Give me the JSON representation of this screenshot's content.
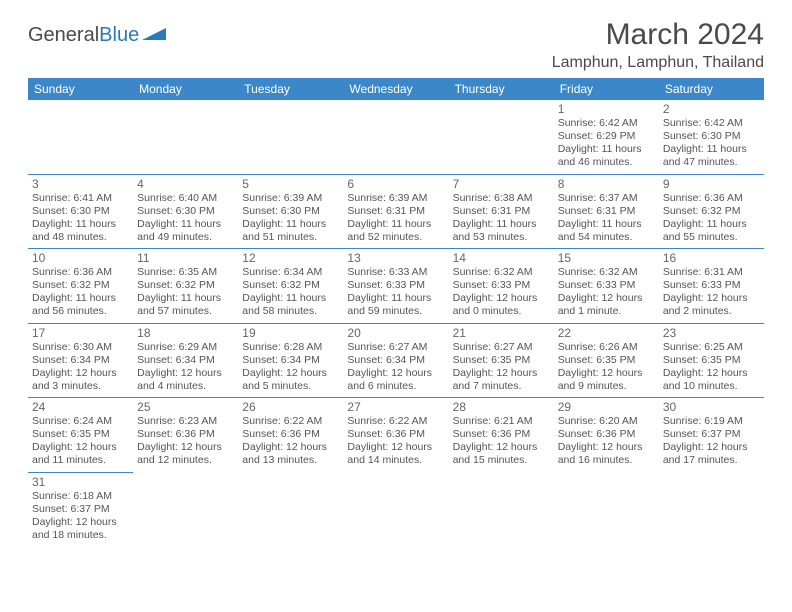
{
  "logo": {
    "text1": "General",
    "text2": "Blue",
    "triangle_color": "#2a7ab8"
  },
  "title": "March 2024",
  "location": "Lamphun, Lamphun, Thailand",
  "colors": {
    "header_bg": "#3b87c8",
    "header_fg": "#ffffff",
    "cell_border": "#3b87c8",
    "text": "#555555",
    "daynum": "#666666"
  },
  "day_headers": [
    "Sunday",
    "Monday",
    "Tuesday",
    "Wednesday",
    "Thursday",
    "Friday",
    "Saturday"
  ],
  "weeks": [
    [
      null,
      null,
      null,
      null,
      null,
      {
        "n": "1",
        "sunrise": "6:42 AM",
        "sunset": "6:29 PM",
        "daylight": "11 hours and 46 minutes."
      },
      {
        "n": "2",
        "sunrise": "6:42 AM",
        "sunset": "6:30 PM",
        "daylight": "11 hours and 47 minutes."
      }
    ],
    [
      {
        "n": "3",
        "sunrise": "6:41 AM",
        "sunset": "6:30 PM",
        "daylight": "11 hours and 48 minutes."
      },
      {
        "n": "4",
        "sunrise": "6:40 AM",
        "sunset": "6:30 PM",
        "daylight": "11 hours and 49 minutes."
      },
      {
        "n": "5",
        "sunrise": "6:39 AM",
        "sunset": "6:30 PM",
        "daylight": "11 hours and 51 minutes."
      },
      {
        "n": "6",
        "sunrise": "6:39 AM",
        "sunset": "6:31 PM",
        "daylight": "11 hours and 52 minutes."
      },
      {
        "n": "7",
        "sunrise": "6:38 AM",
        "sunset": "6:31 PM",
        "daylight": "11 hours and 53 minutes."
      },
      {
        "n": "8",
        "sunrise": "6:37 AM",
        "sunset": "6:31 PM",
        "daylight": "11 hours and 54 minutes."
      },
      {
        "n": "9",
        "sunrise": "6:36 AM",
        "sunset": "6:32 PM",
        "daylight": "11 hours and 55 minutes."
      }
    ],
    [
      {
        "n": "10",
        "sunrise": "6:36 AM",
        "sunset": "6:32 PM",
        "daylight": "11 hours and 56 minutes."
      },
      {
        "n": "11",
        "sunrise": "6:35 AM",
        "sunset": "6:32 PM",
        "daylight": "11 hours and 57 minutes."
      },
      {
        "n": "12",
        "sunrise": "6:34 AM",
        "sunset": "6:32 PM",
        "daylight": "11 hours and 58 minutes."
      },
      {
        "n": "13",
        "sunrise": "6:33 AM",
        "sunset": "6:33 PM",
        "daylight": "11 hours and 59 minutes."
      },
      {
        "n": "14",
        "sunrise": "6:32 AM",
        "sunset": "6:33 PM",
        "daylight": "12 hours and 0 minutes."
      },
      {
        "n": "15",
        "sunrise": "6:32 AM",
        "sunset": "6:33 PM",
        "daylight": "12 hours and 1 minute."
      },
      {
        "n": "16",
        "sunrise": "6:31 AM",
        "sunset": "6:33 PM",
        "daylight": "12 hours and 2 minutes."
      }
    ],
    [
      {
        "n": "17",
        "sunrise": "6:30 AM",
        "sunset": "6:34 PM",
        "daylight": "12 hours and 3 minutes."
      },
      {
        "n": "18",
        "sunrise": "6:29 AM",
        "sunset": "6:34 PM",
        "daylight": "12 hours and 4 minutes."
      },
      {
        "n": "19",
        "sunrise": "6:28 AM",
        "sunset": "6:34 PM",
        "daylight": "12 hours and 5 minutes."
      },
      {
        "n": "20",
        "sunrise": "6:27 AM",
        "sunset": "6:34 PM",
        "daylight": "12 hours and 6 minutes."
      },
      {
        "n": "21",
        "sunrise": "6:27 AM",
        "sunset": "6:35 PM",
        "daylight": "12 hours and 7 minutes."
      },
      {
        "n": "22",
        "sunrise": "6:26 AM",
        "sunset": "6:35 PM",
        "daylight": "12 hours and 9 minutes."
      },
      {
        "n": "23",
        "sunrise": "6:25 AM",
        "sunset": "6:35 PM",
        "daylight": "12 hours and 10 minutes."
      }
    ],
    [
      {
        "n": "24",
        "sunrise": "6:24 AM",
        "sunset": "6:35 PM",
        "daylight": "12 hours and 11 minutes."
      },
      {
        "n": "25",
        "sunrise": "6:23 AM",
        "sunset": "6:36 PM",
        "daylight": "12 hours and 12 minutes."
      },
      {
        "n": "26",
        "sunrise": "6:22 AM",
        "sunset": "6:36 PM",
        "daylight": "12 hours and 13 minutes."
      },
      {
        "n": "27",
        "sunrise": "6:22 AM",
        "sunset": "6:36 PM",
        "daylight": "12 hours and 14 minutes."
      },
      {
        "n": "28",
        "sunrise": "6:21 AM",
        "sunset": "6:36 PM",
        "daylight": "12 hours and 15 minutes."
      },
      {
        "n": "29",
        "sunrise": "6:20 AM",
        "sunset": "6:36 PM",
        "daylight": "12 hours and 16 minutes."
      },
      {
        "n": "30",
        "sunrise": "6:19 AM",
        "sunset": "6:37 PM",
        "daylight": "12 hours and 17 minutes."
      }
    ],
    [
      {
        "n": "31",
        "sunrise": "6:18 AM",
        "sunset": "6:37 PM",
        "daylight": "12 hours and 18 minutes."
      },
      null,
      null,
      null,
      null,
      null,
      null
    ]
  ],
  "labels": {
    "sunrise": "Sunrise:",
    "sunset": "Sunset:",
    "daylight": "Daylight:"
  }
}
